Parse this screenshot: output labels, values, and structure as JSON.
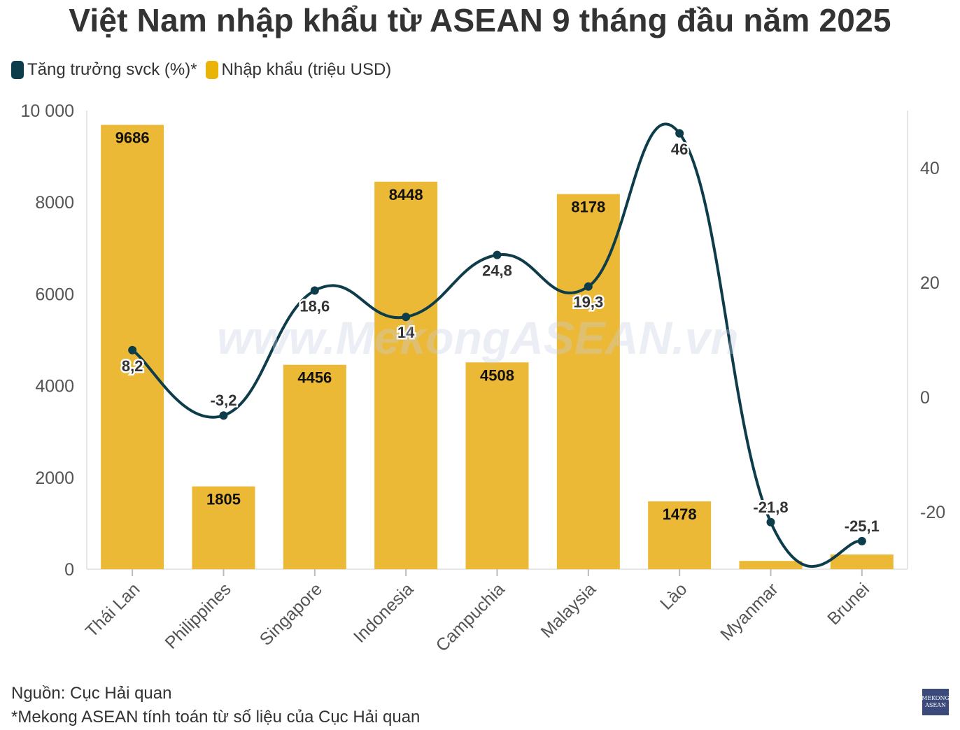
{
  "title": "Việt Nam nhập khẩu từ ASEAN 9 tháng đầu năm 2025",
  "legend": [
    {
      "label": "Tăng trưởng svck (%)*",
      "color": "#0d3d4a"
    },
    {
      "label": "Nhập khẩu (triệu USD)",
      "color": "#eab308"
    }
  ],
  "watermark": "www.MekongASEAN.vn",
  "footer": {
    "source": "Nguồn: Cục Hải quan",
    "note": "*Mekong ASEAN tính toán từ số liệu của Cục Hải quan"
  },
  "logo": {
    "line1": "MEKONG",
    "line2": "ASEAN"
  },
  "chart_data": {
    "type": "bar",
    "categories": [
      "Thái Lan",
      "Philippines",
      "Singapore",
      "Indonesia",
      "Campuchia",
      "Malaysia",
      "Lào",
      "Myanmar",
      "Brunei"
    ],
    "series": [
      {
        "name": "Nhập khẩu (triệu USD)",
        "type": "bar",
        "axis": "left",
        "color": "#ebb935",
        "values": [
          9686,
          1805,
          4456,
          8448,
          4508,
          8178,
          1478,
          180,
          320
        ],
        "labels": [
          "9686",
          "1805",
          "4456",
          "8448",
          "4508",
          "8178",
          "1478",
          "",
          ""
        ]
      },
      {
        "name": "Tăng trưởng svck (%)*",
        "type": "line",
        "axis": "right",
        "color": "#0d3d4a",
        "values": [
          8.2,
          -3.2,
          18.6,
          14,
          24.8,
          19.3,
          46,
          -21.8,
          -25.1
        ],
        "labels": [
          "8,2",
          "-3,2",
          "18,6",
          "14",
          "24,8",
          "19,3",
          "46",
          "-21,8",
          "-25,1"
        ]
      }
    ],
    "y_left": {
      "min": 0,
      "max": 10000,
      "ticks": [
        0,
        2000,
        4000,
        6000,
        8000,
        10000
      ],
      "tick_labels": [
        "0",
        "2000",
        "4000",
        "6000",
        "8000",
        "10 000"
      ]
    },
    "y_right": {
      "min": -30,
      "max": 50,
      "ticks": [
        -20,
        0,
        20,
        40
      ],
      "tick_labels": [
        "-20",
        "0",
        "20",
        "40"
      ]
    },
    "grid": false
  }
}
